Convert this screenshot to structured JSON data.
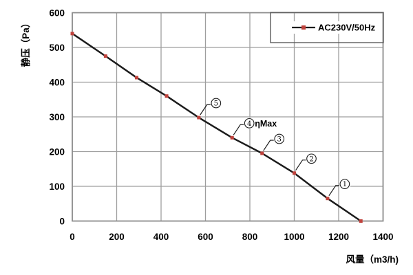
{
  "chart_data": {
    "type": "line",
    "title": "",
    "xlabel": "风量（m3/h)",
    "ylabel": "静压（Pa）",
    "xlim": [
      0,
      1400
    ],
    "ylim": [
      0,
      600
    ],
    "x_ticks": [
      0,
      200,
      400,
      600,
      800,
      1000,
      1200,
      1400
    ],
    "y_ticks": [
      0,
      100,
      200,
      300,
      400,
      500,
      600
    ],
    "grid": true,
    "legend_position": "top-right",
    "series": [
      {
        "name": "AC230V/50Hz",
        "marker": "square",
        "points": [
          [
            0,
            540
          ],
          [
            150,
            475
          ],
          [
            290,
            413
          ],
          [
            425,
            360
          ],
          [
            570,
            298
          ],
          [
            720,
            240
          ],
          [
            855,
            195
          ],
          [
            1000,
            138
          ],
          [
            1150,
            65
          ],
          [
            1300,
            0
          ]
        ]
      }
    ],
    "annotations": [
      {
        "number": "5",
        "suffix": "",
        "point_index": 4
      },
      {
        "number": "4",
        "suffix": "ηMax",
        "point_index": 5
      },
      {
        "number": "3",
        "suffix": "",
        "point_index": 6
      },
      {
        "number": "2",
        "suffix": "",
        "point_index": 7
      },
      {
        "number": "1",
        "suffix": "",
        "point_index": 8
      }
    ]
  },
  "colors": {
    "curve": "#1b1b1b",
    "marker": "#c0423c",
    "grid": "#9e9e9e",
    "plot_border": "#8a8a8a",
    "legend_border": "#5a5a5a",
    "text": "#000000",
    "background": "#ffffff"
  }
}
